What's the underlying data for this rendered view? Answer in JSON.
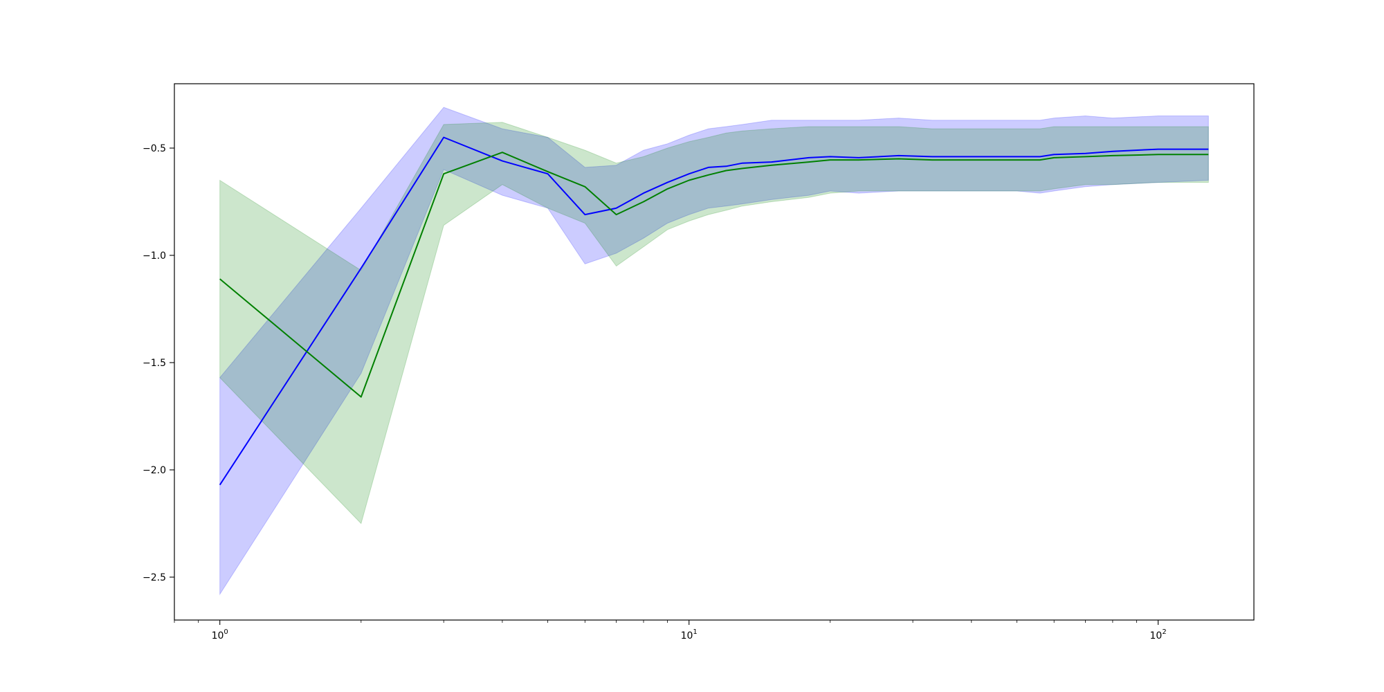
{
  "chart_data": {
    "type": "line",
    "title": "",
    "xlabel": "",
    "ylabel": "",
    "xscale": "log",
    "xlim": [
      0.8,
      160
    ],
    "ylim": [
      -2.7,
      -0.2
    ],
    "grid": false,
    "legend": null,
    "x_ticks": [
      {
        "value": 1,
        "label": "10",
        "exponent": "0"
      },
      {
        "value": 10,
        "label": "10",
        "exponent": "1"
      },
      {
        "value": 100,
        "label": "10",
        "exponent": "2"
      }
    ],
    "y_ticks": [
      {
        "value": -2.5,
        "label": "−2.5"
      },
      {
        "value": -2.0,
        "label": "−2.0"
      },
      {
        "value": -1.5,
        "label": "−1.5"
      },
      {
        "value": -1.0,
        "label": "−1.0"
      },
      {
        "value": -0.5,
        "label": "−0.5"
      }
    ],
    "series": [
      {
        "color": "#0000ff",
        "band_color": "#0000ff",
        "band_opacity": 0.2,
        "x": [
          1,
          2,
          3,
          4,
          5,
          6,
          7,
          8,
          9,
          10,
          11,
          12,
          13,
          15,
          18,
          20,
          23,
          28,
          33,
          40,
          50,
          56,
          60,
          70,
          80,
          100,
          128
        ],
        "mean": [
          -2.07,
          -1.06,
          -0.45,
          -0.56,
          -0.62,
          -0.81,
          -0.78,
          -0.71,
          -0.66,
          -0.62,
          -0.59,
          -0.585,
          -0.57,
          -0.565,
          -0.545,
          -0.54,
          -0.545,
          -0.535,
          -0.54,
          -0.54,
          -0.54,
          -0.54,
          -0.53,
          -0.525,
          -0.515,
          -0.505,
          -0.505
        ],
        "lower": [
          -2.58,
          -1.55,
          -0.6,
          -0.72,
          -0.78,
          -1.04,
          -0.99,
          -0.92,
          -0.85,
          -0.81,
          -0.78,
          -0.77,
          -0.76,
          -0.74,
          -0.72,
          -0.7,
          -0.71,
          -0.7,
          -0.7,
          -0.7,
          -0.7,
          -0.71,
          -0.7,
          -0.68,
          -0.67,
          -0.66,
          -0.65
        ],
        "upper": [
          -1.57,
          -0.78,
          -0.31,
          -0.41,
          -0.45,
          -0.59,
          -0.58,
          -0.51,
          -0.48,
          -0.44,
          -0.41,
          -0.4,
          -0.39,
          -0.37,
          -0.37,
          -0.37,
          -0.37,
          -0.36,
          -0.37,
          -0.37,
          -0.37,
          -0.37,
          -0.36,
          -0.35,
          -0.36,
          -0.35,
          -0.35
        ]
      },
      {
        "color": "#008000",
        "band_color": "#008000",
        "band_opacity": 0.2,
        "x": [
          1,
          2,
          3,
          4,
          5,
          6,
          7,
          8,
          9,
          10,
          11,
          12,
          13,
          15,
          18,
          20,
          23,
          28,
          33,
          40,
          50,
          56,
          60,
          70,
          80,
          100,
          128
        ],
        "mean": [
          -1.11,
          -1.66,
          -0.62,
          -0.52,
          -0.61,
          -0.68,
          -0.81,
          -0.75,
          -0.69,
          -0.65,
          -0.625,
          -0.605,
          -0.595,
          -0.58,
          -0.565,
          -0.555,
          -0.555,
          -0.55,
          -0.555,
          -0.555,
          -0.555,
          -0.555,
          -0.545,
          -0.54,
          -0.535,
          -0.53,
          -0.53
        ],
        "lower": [
          -1.57,
          -2.25,
          -0.86,
          -0.67,
          -0.78,
          -0.85,
          -1.05,
          -0.96,
          -0.88,
          -0.84,
          -0.81,
          -0.79,
          -0.77,
          -0.75,
          -0.73,
          -0.71,
          -0.7,
          -0.7,
          -0.7,
          -0.7,
          -0.7,
          -0.7,
          -0.69,
          -0.67,
          -0.67,
          -0.66,
          -0.66
        ],
        "upper": [
          -0.65,
          -1.07,
          -0.39,
          -0.38,
          -0.45,
          -0.51,
          -0.57,
          -0.54,
          -0.5,
          -0.47,
          -0.45,
          -0.43,
          -0.42,
          -0.41,
          -0.4,
          -0.4,
          -0.4,
          -0.4,
          -0.41,
          -0.41,
          -0.41,
          -0.41,
          -0.4,
          -0.4,
          -0.4,
          -0.4,
          -0.4
        ]
      }
    ]
  }
}
